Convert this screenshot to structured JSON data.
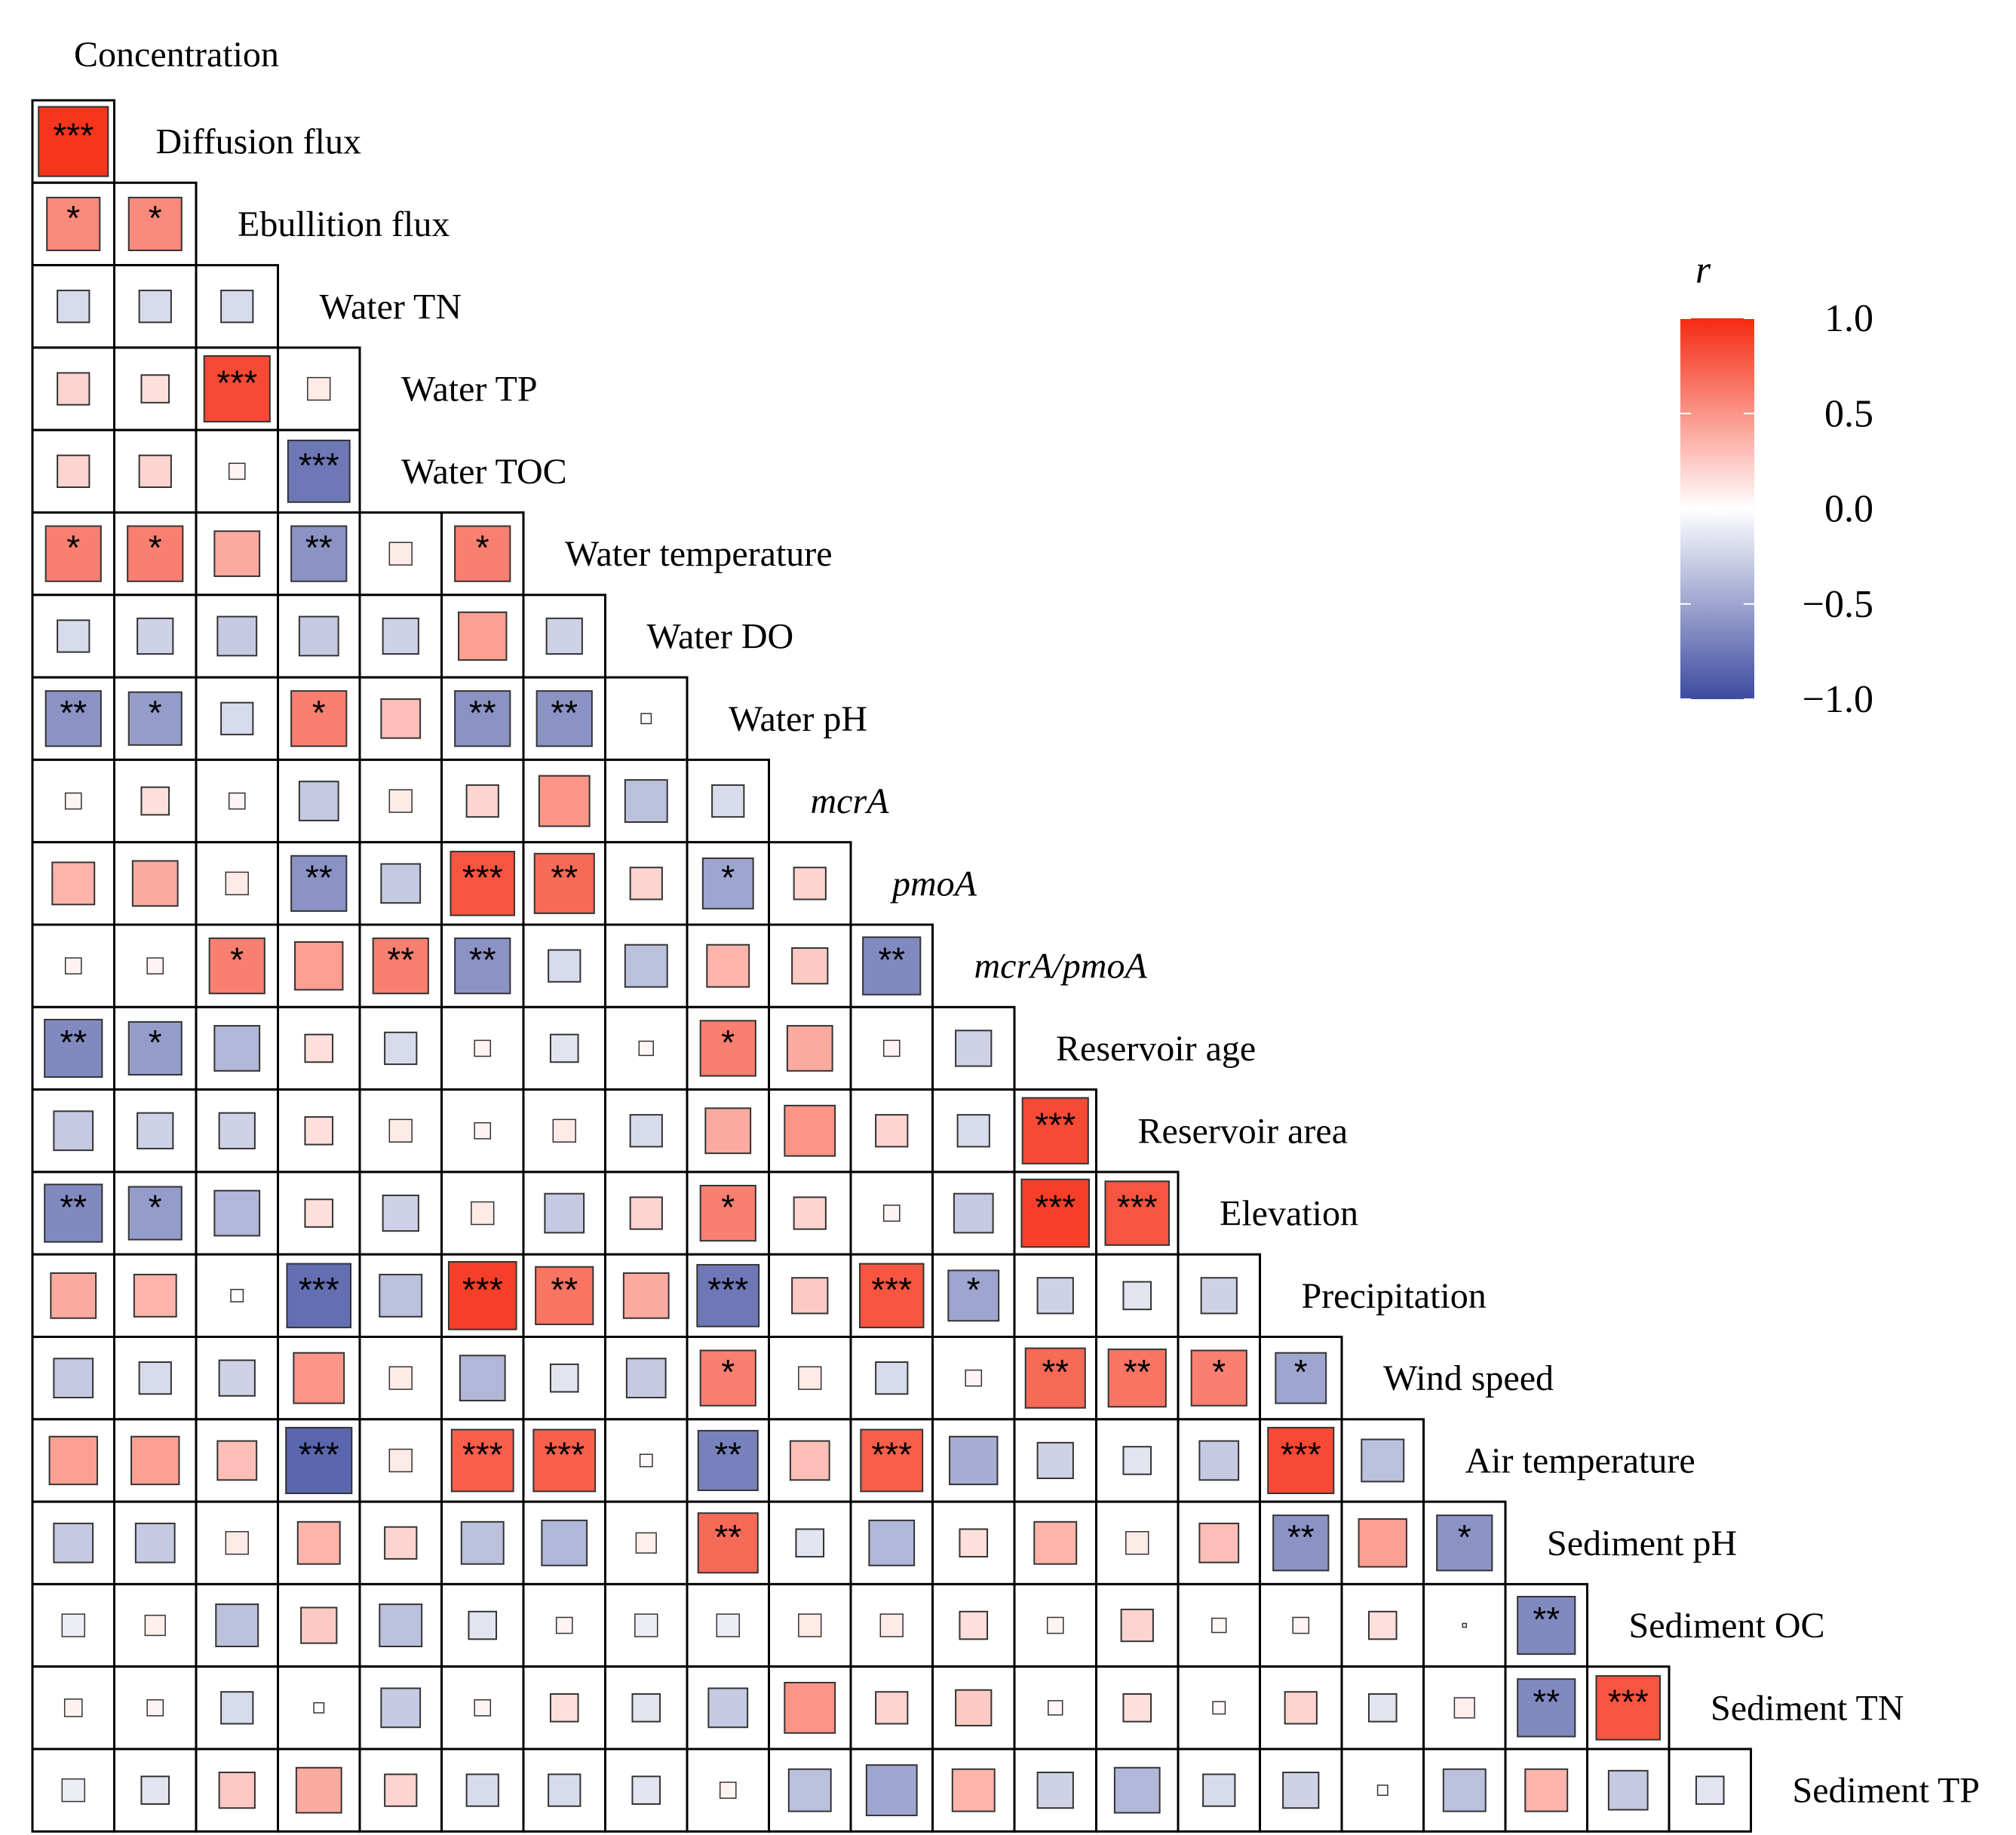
{
  "chart_data": {
    "type": "heatmap",
    "title": "",
    "legend_title": "r",
    "legend_ticks": [
      "1.0",
      "0.5",
      "0.0",
      "−0.5",
      "−1.0"
    ],
    "legend_tick_values": [
      1.0,
      0.5,
      0.0,
      -0.5,
      -1.0
    ],
    "color_scale": {
      "low": "#3d4b9e",
      "mid": "#ffffff",
      "high": "#f52a10"
    },
    "variables": [
      {
        "label": "Concentration",
        "italic": false
      },
      {
        "label": "Diffusion flux",
        "italic": false
      },
      {
        "label": "Ebullition flux",
        "italic": false
      },
      {
        "label": "Water TN",
        "italic": false
      },
      {
        "label": "Water TP",
        "italic": false
      },
      {
        "label": "Water TOC",
        "italic": false
      },
      {
        "label": "Water temperature",
        "italic": false
      },
      {
        "label": "Water DO",
        "italic": false
      },
      {
        "label": "Water pH",
        "italic": false
      },
      {
        "label": "mcrA",
        "italic": true
      },
      {
        "label": "pmoA",
        "italic": true
      },
      {
        "label": "mcrA/pmoA",
        "italic": true
      },
      {
        "label": "Reservoir age",
        "italic": false
      },
      {
        "label": "Reservoir area",
        "italic": false
      },
      {
        "label": "Elevation",
        "italic": false
      },
      {
        "label": "Precipitation",
        "italic": false
      },
      {
        "label": "Wind speed",
        "italic": false
      },
      {
        "label": "Air temperature",
        "italic": false
      },
      {
        "label": "Sediment pH",
        "italic": false
      },
      {
        "label": "Sediment OC",
        "italic": false
      },
      {
        "label": "Sediment TN",
        "italic": false
      },
      {
        "label": "Sediment TP",
        "italic": false
      }
    ],
    "correlations": [
      [
        0.95
      ],
      [
        0.55,
        0.55
      ],
      [
        -0.2,
        -0.2,
        -0.2
      ],
      [
        0.2,
        0.15,
        0.85,
        0.1
      ],
      [
        0.2,
        0.2,
        0.05,
        -0.75
      ],
      [
        0.6,
        0.6,
        0.4,
        -0.6,
        0.1,
        0.6
      ],
      [
        -0.2,
        -0.25,
        -0.3,
        -0.3,
        -0.25,
        0.45,
        -0.25
      ],
      [
        -0.6,
        -0.55,
        -0.2,
        0.6,
        0.3,
        -0.6,
        -0.6,
        0.02
      ],
      [
        0.05,
        0.15,
        0.05,
        -0.3,
        0.1,
        0.2,
        0.5,
        -0.35,
        -0.2
      ],
      [
        0.35,
        0.4,
        0.1,
        -0.6,
        -0.3,
        0.8,
        0.7,
        0.2,
        -0.5,
        0.2
      ],
      [
        0.05,
        0.05,
        0.6,
        0.45,
        0.6,
        -0.6,
        -0.2,
        -0.35,
        0.35,
        0.25,
        -0.65
      ],
      [
        -0.65,
        -0.55,
        -0.4,
        0.15,
        -0.2,
        0.05,
        -0.15,
        0.04,
        0.6,
        0.4,
        0.05,
        -0.25
      ],
      [
        -0.3,
        -0.25,
        -0.25,
        0.15,
        0.1,
        0.05,
        0.1,
        -0.2,
        0.4,
        0.5,
        0.2,
        -0.2,
        0.85
      ],
      [
        -0.65,
        -0.55,
        -0.4,
        0.15,
        -0.25,
        0.1,
        -0.3,
        0.2,
        0.6,
        0.2,
        0.05,
        -0.3,
        0.9,
        0.8
      ],
      [
        0.4,
        0.35,
        0.03,
        -0.8,
        -0.35,
        0.9,
        0.65,
        0.4,
        -0.75,
        0.25,
        0.8,
        -0.5,
        -0.25,
        -0.15,
        -0.25
      ],
      [
        -0.3,
        -0.2,
        -0.25,
        0.5,
        0.1,
        -0.4,
        -0.15,
        -0.3,
        0.6,
        0.1,
        -0.2,
        0.05,
        0.7,
        0.65,
        0.6,
        -0.5
      ],
      [
        0.45,
        0.45,
        0.3,
        -0.85,
        0.1,
        0.75,
        0.75,
        0.03,
        -0.7,
        0.3,
        0.75,
        -0.45,
        -0.25,
        -0.15,
        -0.3,
        0.85,
        -0.35
      ],
      [
        -0.3,
        -0.3,
        0.1,
        0.35,
        0.2,
        -0.35,
        -0.4,
        0.08,
        0.7,
        -0.15,
        -0.4,
        0.15,
        0.35,
        0.1,
        0.3,
        -0.6,
        0.45,
        -0.6
      ],
      [
        -0.1,
        0.08,
        -0.35,
        0.25,
        -0.35,
        -0.15,
        0.05,
        -0.1,
        -0.1,
        0.1,
        0.1,
        0.15,
        0.05,
        0.2,
        0.04,
        0.05,
        0.15,
        0.0,
        -0.65
      ],
      [
        0.06,
        0.05,
        -0.2,
        0.02,
        -0.3,
        0.05,
        0.15,
        -0.15,
        -0.3,
        0.5,
        0.2,
        0.25,
        0.04,
        0.15,
        0.03,
        0.2,
        -0.15,
        0.08,
        -0.65,
        0.8
      ],
      [
        -0.1,
        -0.15,
        0.25,
        0.4,
        0.2,
        -0.2,
        -0.2,
        -0.15,
        0.05,
        -0.35,
        -0.5,
        0.35,
        -0.25,
        -0.4,
        -0.2,
        -0.25,
        0.02,
        -0.35,
        0.35,
        -0.3,
        -0.15
      ]
    ],
    "significance": [
      [
        "***"
      ],
      [
        "*",
        "*"
      ],
      [
        "",
        "",
        ""
      ],
      [
        "",
        "",
        "***",
        ""
      ],
      [
        "",
        "",
        "",
        "***",
        ""
      ],
      [
        "*",
        "*",
        "",
        "**",
        "",
        "*"
      ],
      [
        "",
        "",
        "",
        "",
        "",
        "",
        ""
      ],
      [
        "**",
        "*",
        "",
        "*",
        "",
        "**",
        "**",
        ""
      ],
      [
        "",
        "",
        "",
        "",
        "",
        "",
        "",
        "",
        ""
      ],
      [
        "",
        "",
        "",
        "**",
        "",
        "***",
        "**",
        "",
        "*",
        ""
      ],
      [
        "",
        "",
        "*",
        "",
        "**",
        "**",
        "",
        "",
        "",
        "",
        "**"
      ],
      [
        "**",
        "*",
        "",
        "",
        "",
        "",
        "",
        "",
        "*",
        "",
        "",
        ""
      ],
      [
        "",
        "",
        "",
        "",
        "",
        "",
        "",
        "",
        "",
        "",
        "",
        "",
        "***"
      ],
      [
        "**",
        "*",
        "",
        "",
        "",
        "",
        "",
        "",
        "*",
        "",
        "",
        "",
        "***",
        "***"
      ],
      [
        "",
        "",
        "",
        "***",
        "",
        "***",
        "**",
        "",
        "***",
        "",
        "***",
        "*",
        "",
        "",
        ""
      ],
      [
        "",
        "",
        "",
        "",
        "",
        "",
        "",
        "",
        "*",
        "",
        "",
        "",
        "**",
        "**",
        "*",
        "*"
      ],
      [
        "",
        "",
        "",
        "***",
        "",
        "***",
        "***",
        "",
        "**",
        "",
        "***",
        "",
        "",
        "",
        "",
        "***",
        ""
      ],
      [
        "",
        "",
        "",
        "",
        "",
        "",
        "",
        "",
        "**",
        "",
        "",
        "",
        "",
        "",
        "",
        "**",
        "",
        "*"
      ],
      [
        "",
        "",
        "",
        "",
        "",
        "",
        "",
        "",
        "",
        "",
        "",
        "",
        "",
        "",
        "",
        "",
        "",
        "",
        "**"
      ],
      [
        "",
        "",
        "",
        "",
        "",
        "",
        "",
        "",
        "",
        "",
        "",
        "",
        "",
        "",
        "",
        "",
        "",
        "",
        "**",
        "***"
      ],
      [
        "",
        "",
        "",
        "",
        "",
        "",
        "",
        "",
        "",
        "",
        "",
        "",
        "",
        "",
        "",
        "",
        "",
        "",
        "",
        "",
        ""
      ]
    ]
  }
}
